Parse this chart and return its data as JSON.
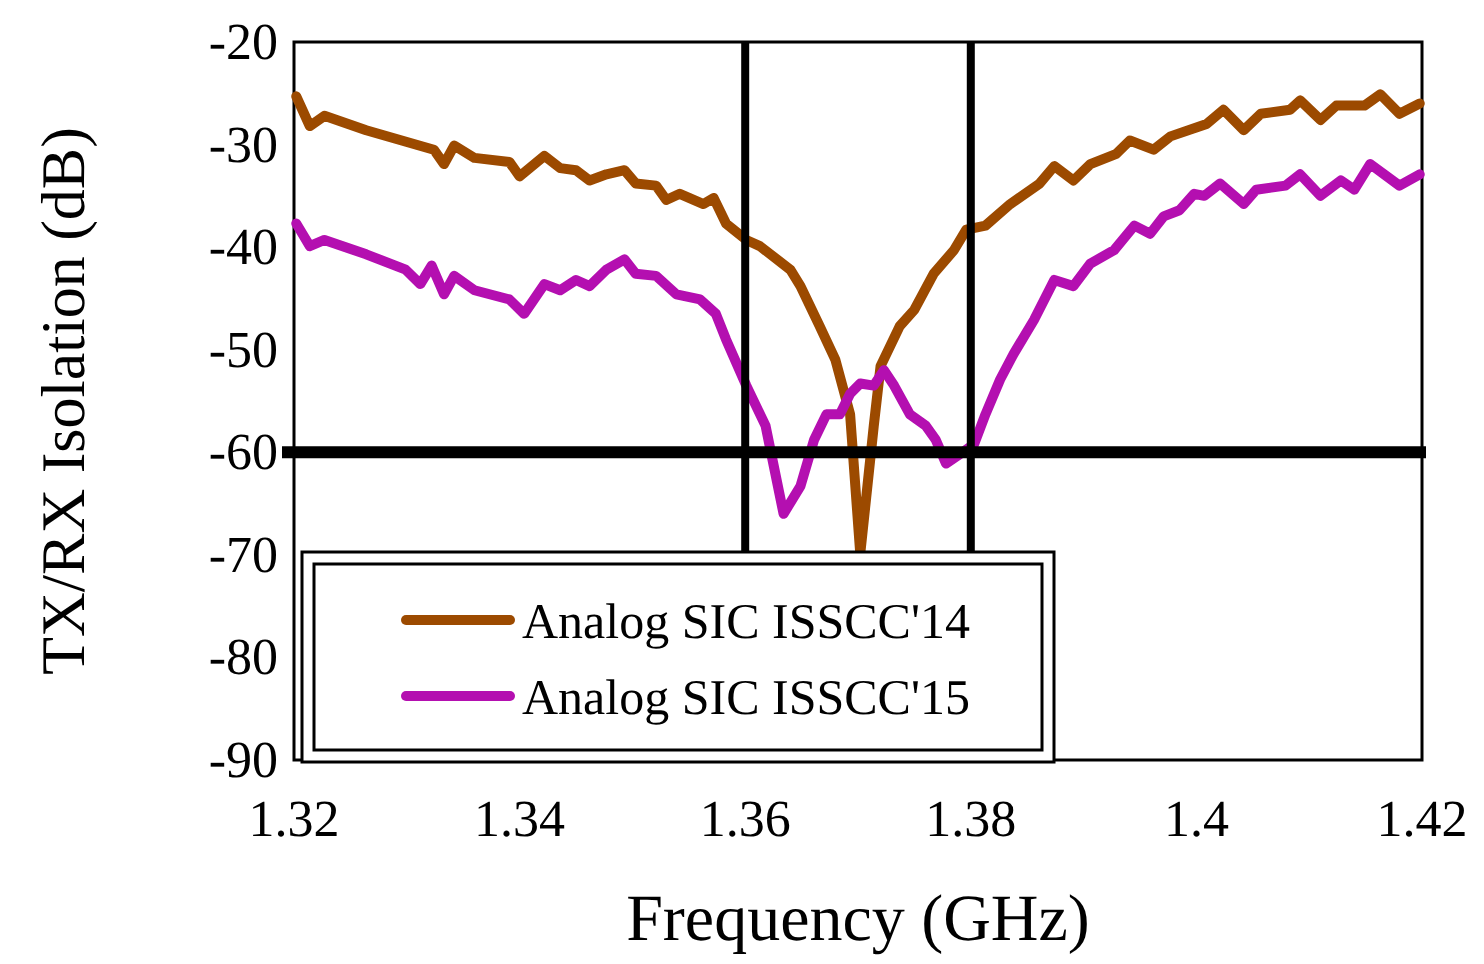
{
  "chart_data": {
    "type": "line",
    "xlabel": "Frequency (GHz)",
    "ylabel": "TX/RX Isolation (dB)",
    "xlim": [
      1.32,
      1.42
    ],
    "xticks": [
      1.32,
      1.34,
      1.36,
      1.38,
      {
        "value": 1.4,
        "label": "1.4"
      },
      1.42
    ],
    "ylim": [
      -90,
      -20
    ],
    "yticks": [
      -90,
      -80,
      -70,
      -60,
      -50,
      -40,
      -30,
      -20
    ],
    "grid": false,
    "legend": "bottom left",
    "line_style": "solid",
    "marker": "none",
    "ref_lines": [
      {
        "axis": "x",
        "value": 1.36,
        "color": "#000000"
      },
      {
        "axis": "x",
        "value": 1.38,
        "color": "#000000"
      },
      {
        "axis": "y",
        "value": -60,
        "color": "#000000"
      }
    ],
    "series": [
      {
        "name": "Analog SIC ISSCC'14",
        "color": "#9c4a00",
        "x": [
          1.3202,
          1.3214,
          1.3227,
          1.3264,
          1.3324,
          1.3333,
          1.3342,
          1.336,
          1.3391,
          1.34,
          1.3422,
          1.3436,
          1.345,
          1.3462,
          1.3477,
          1.3493,
          1.3503,
          1.3521,
          1.353,
          1.3542,
          1.3563,
          1.3572,
          1.3583,
          1.3601,
          1.3613,
          1.364,
          1.3649,
          1.3666,
          1.368,
          1.3693,
          1.3702,
          1.3714,
          1.372,
          1.3737,
          1.375,
          1.3767,
          1.3785,
          1.3796,
          1.3813,
          1.3835,
          1.3861,
          1.3874,
          1.3891,
          1.3906,
          1.3929,
          1.3941,
          1.3962,
          1.3977,
          1.4009,
          1.4024,
          1.4042,
          1.4057,
          1.4083,
          1.4092,
          1.411,
          1.4124,
          1.4149,
          1.4163,
          1.418,
          1.4198
        ],
        "values": [
          -25.3,
          -28.2,
          -27.2,
          -28.6,
          -30.5,
          -31.9,
          -30.1,
          -31.3,
          -31.7,
          -33.1,
          -31.1,
          -32.3,
          -32.5,
          -33.5,
          -32.9,
          -32.5,
          -33.8,
          -34.0,
          -35.4,
          -34.8,
          -35.8,
          -35.2,
          -37.7,
          -39.3,
          -39.9,
          -42.2,
          -43.8,
          -47.7,
          -51.0,
          -56.3,
          -69.9,
          -57.4,
          -51.6,
          -47.7,
          -46.1,
          -42.6,
          -40.3,
          -38.3,
          -37.9,
          -35.8,
          -33.8,
          -32.1,
          -33.5,
          -31.9,
          -30.9,
          -29.6,
          -30.5,
          -29.2,
          -28.0,
          -26.6,
          -28.6,
          -27.0,
          -26.6,
          -25.7,
          -27.6,
          -26.2,
          -26.2,
          -25.1,
          -27.0,
          -26.0
        ]
      },
      {
        "name": "Analog SIC ISSCC'15",
        "color": "#b40fb0",
        "x": [
          1.3202,
          1.3214,
          1.3227,
          1.3264,
          1.3299,
          1.3312,
          1.3322,
          1.3333,
          1.3342,
          1.336,
          1.3391,
          1.3404,
          1.3422,
          1.3436,
          1.345,
          1.3462,
          1.3477,
          1.3493,
          1.3503,
          1.3521,
          1.3539,
          1.356,
          1.3574,
          1.3583,
          1.3601,
          1.3618,
          1.3634,
          1.3649,
          1.3661,
          1.3672,
          1.3684,
          1.3693,
          1.3702,
          1.3714,
          1.3723,
          1.3732,
          1.3746,
          1.376,
          1.3769,
          1.3778,
          1.379,
          1.3803,
          1.3813,
          1.3826,
          1.3838,
          1.3856,
          1.3874,
          1.3891,
          1.3906,
          1.3927,
          1.3945,
          1.3959,
          1.3971,
          1.3985,
          1.3998,
          1.4007,
          1.4021,
          1.4042,
          1.4053,
          1.4079,
          1.4092,
          1.411,
          1.4128,
          1.414,
          1.4154,
          1.418,
          1.4198
        ],
        "values": [
          -37.7,
          -39.9,
          -39.3,
          -40.7,
          -42.2,
          -43.6,
          -41.8,
          -44.6,
          -42.8,
          -44.2,
          -45.1,
          -46.5,
          -43.6,
          -44.2,
          -43.2,
          -43.8,
          -42.2,
          -41.2,
          -42.6,
          -42.8,
          -44.6,
          -45.1,
          -46.5,
          -49.0,
          -53.5,
          -57.4,
          -66.0,
          -63.3,
          -58.8,
          -56.3,
          -56.3,
          -54.3,
          -53.3,
          -53.5,
          -52.0,
          -53.5,
          -56.3,
          -57.4,
          -58.8,
          -61.1,
          -60.2,
          -59.2,
          -56.3,
          -52.9,
          -50.4,
          -47.1,
          -43.2,
          -43.8,
          -41.6,
          -40.3,
          -37.9,
          -38.7,
          -37.0,
          -36.4,
          -34.8,
          -35.0,
          -33.8,
          -35.8,
          -34.4,
          -34.0,
          -32.9,
          -35.0,
          -33.5,
          -34.4,
          -31.9,
          -34.0,
          -32.9
        ]
      }
    ]
  }
}
